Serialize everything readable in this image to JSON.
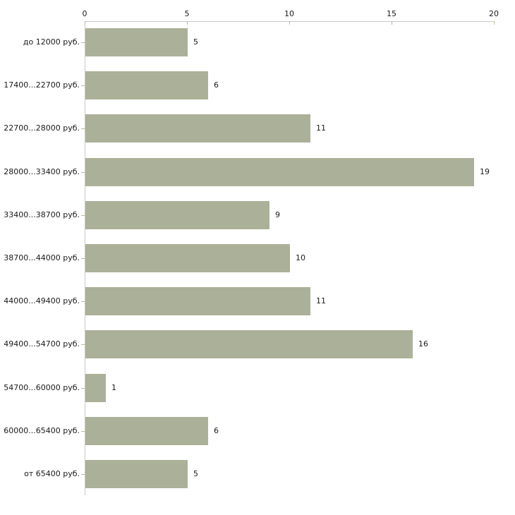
{
  "chart_data": {
    "type": "bar",
    "orientation": "horizontal",
    "title": "",
    "xlabel": "",
    "ylabel": "",
    "categories": [
      "до 12000 руб.",
      "17400...22700 руб.",
      "22700...28000 руб.",
      "28000...33400 руб.",
      "33400...38700 руб.",
      "38700...44000 руб.",
      "44000...49400 руб.",
      "49400...54700 руб.",
      "54700...60000 руб.",
      "60000...65400 руб.",
      "от 65400 руб."
    ],
    "values": [
      5,
      6,
      11,
      19,
      9,
      10,
      11,
      16,
      1,
      6,
      5
    ],
    "x_ticks": [
      "0",
      "5",
      "10",
      "15",
      "20"
    ],
    "xlim": [
      0,
      20
    ],
    "grid": false,
    "legend": false,
    "axis_position": "top",
    "colors": {
      "bar": "#abb098",
      "axis_line": "#c9c9c9",
      "tick_mark": "#b9bc96",
      "text": "#1a1a1a",
      "background": "#ffffff"
    }
  }
}
